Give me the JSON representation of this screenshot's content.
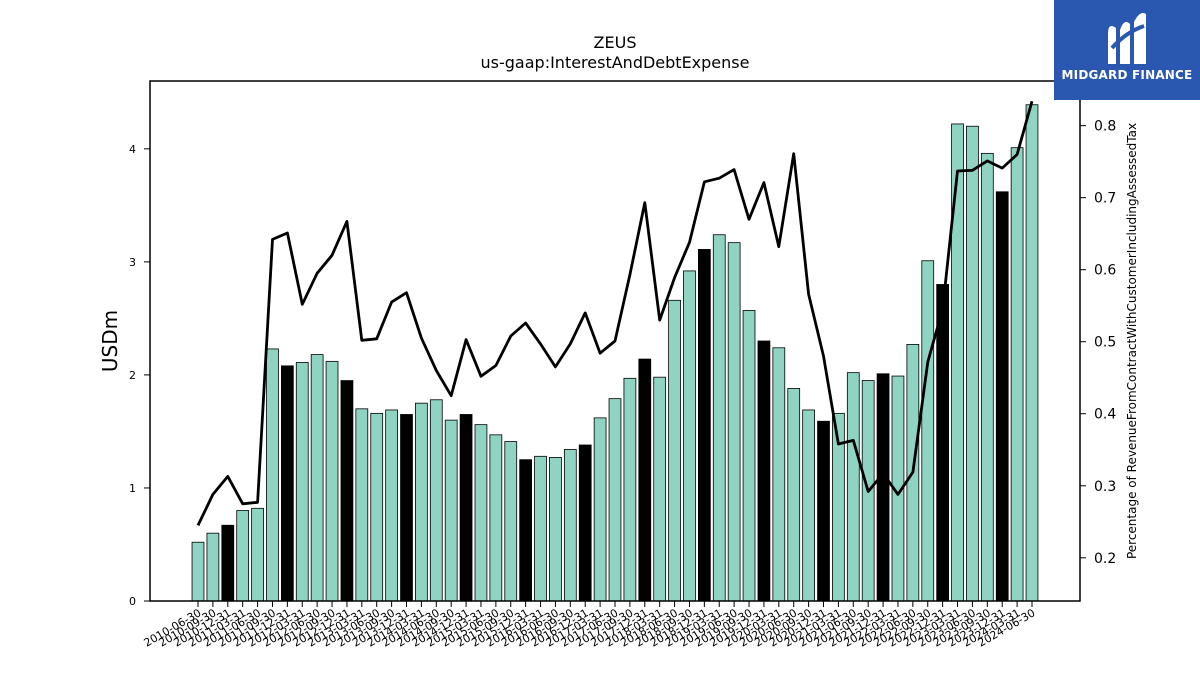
{
  "chart_data": {
    "type": "bar",
    "title": "ZEUS",
    "subtitle": "us-gaap:InterestAndDebtExpense",
    "ylabel": "USDm",
    "y2label": "Percentage of RevenueFromContractWithCustomerIncludingAssessedTax",
    "ylim": [
      0,
      4.6
    ],
    "y2lim": [
      0.14,
      0.862
    ],
    "yticks": [
      "0",
      "1",
      "2",
      "3",
      "4"
    ],
    "y2ticks": [
      "0.2",
      "0.3",
      "0.4",
      "0.5",
      "0.6",
      "0.7",
      "0.8"
    ],
    "colors": {
      "bar": "#8fd3c3",
      "highlight": "#000000",
      "line": "#000000"
    },
    "categories": [
      "2010-06-30",
      "2010-09-30",
      "2010-12-31",
      "2011-03-31",
      "2011-06-30",
      "2011-09-30",
      "2011-12-31",
      "2012-03-31",
      "2012-06-30",
      "2012-09-30",
      "2012-12-31",
      "2013-03-31",
      "2013-06-30",
      "2013-09-30",
      "2013-12-31",
      "2014-03-31",
      "2014-06-30",
      "2014-09-30",
      "2014-12-31",
      "2015-03-31",
      "2015-06-30",
      "2015-09-30",
      "2015-12-31",
      "2016-03-31",
      "2016-06-30",
      "2016-09-30",
      "2016-12-31",
      "2017-03-31",
      "2017-06-30",
      "2017-09-30",
      "2017-12-31",
      "2018-03-31",
      "2018-06-30",
      "2018-09-30",
      "2018-12-31",
      "2019-03-31",
      "2019-06-30",
      "2019-09-30",
      "2019-12-31",
      "2020-03-31",
      "2020-06-30",
      "2020-09-30",
      "2020-12-31",
      "2021-03-31",
      "2021-06-30",
      "2021-09-30",
      "2021-12-31",
      "2022-03-31",
      "2022-06-30",
      "2022-09-30",
      "2022-12-31",
      "2023-03-31",
      "2023-06-30",
      "2023-09-30",
      "2023-12-31",
      "2024-03-31",
      "2024-06-30"
    ],
    "tick_labels": [
      "2010-06-30",
      "2010-09-30",
      "2010-12-31",
      "2011-03-31",
      "2011-06-30",
      "2011-09-30",
      "2011-12-31",
      "2012-03-31",
      "2012-06-30",
      "2012-09-30",
      "2012-12-31",
      "2013-03-31",
      "2013-06-30",
      "2013-09-30",
      "2013-12-31",
      "2014-03-31",
      "2014-06-30",
      "2014-09-30",
      "2014-12-31",
      "2015-03-31",
      "2015-06-30",
      "2015-09-30",
      "2015-12-31",
      "2016-03-31",
      "2016-06-30",
      "2016-09-30",
      "2016-12-31",
      "2017-03-31",
      "2017-06-30",
      "2017-09-30",
      "2017-12-31",
      "2018-03-31",
      "2018-06-30",
      "2018-09-30",
      "2018-12-31",
      "2019-03-31",
      "2019-06-30",
      "2019-09-30",
      "2019-12-31",
      "2020-03-31",
      "2020-06-30",
      "2020-09-30",
      "2020-12-31",
      "2021-03-31",
      "2021-06-30",
      "2021-09-30",
      "2021-12-31",
      "2022-03-31",
      "2022-06-30",
      "2022-09-30",
      "2022-12-31",
      "2023-03-31",
      "2023-06-30",
      "2023-09-30",
      "2023-12-31",
      "2024-03-31",
      "2024-06-30"
    ],
    "series": [
      {
        "type": "bar",
        "values": [
          0.52,
          0.6,
          0.67,
          0.8,
          0.82,
          2.23,
          2.08,
          2.11,
          2.18,
          2.12,
          1.95,
          1.7,
          1.66,
          1.69,
          1.65,
          1.75,
          1.78,
          1.6,
          1.65,
          1.56,
          1.47,
          1.41,
          1.25,
          1.28,
          1.27,
          1.34,
          1.38,
          1.62,
          1.79,
          1.97,
          2.14,
          1.98,
          2.66,
          2.92,
          3.11,
          3.24,
          3.17,
          2.57,
          2.3,
          2.24,
          1.88,
          1.69,
          1.59,
          1.66,
          2.02,
          1.95,
          2.01,
          1.99,
          2.27,
          3.01,
          2.8,
          4.22,
          4.2,
          3.96,
          3.62,
          4.01,
          4.39
        ],
        "highlight": [
          false,
          false,
          true,
          false,
          false,
          false,
          true,
          false,
          false,
          false,
          true,
          false,
          false,
          false,
          true,
          false,
          false,
          false,
          true,
          false,
          false,
          false,
          true,
          false,
          false,
          false,
          true,
          false,
          false,
          false,
          true,
          false,
          false,
          false,
          true,
          false,
          false,
          false,
          true,
          false,
          false,
          false,
          true,
          false,
          false,
          false,
          true,
          false,
          false,
          false,
          true,
          false,
          false,
          false,
          true,
          false,
          false
        ]
      },
      {
        "type": "line",
        "axis": "right",
        "values": [
          0.245,
          0.288,
          0.313,
          0.275,
          0.277,
          0.642,
          0.651,
          0.552,
          0.595,
          0.62,
          0.667,
          0.502,
          0.504,
          0.555,
          0.568,
          0.505,
          0.46,
          0.425,
          0.503,
          0.452,
          0.467,
          0.508,
          0.526,
          0.497,
          0.465,
          0.497,
          0.54,
          0.484,
          0.501,
          0.593,
          0.693,
          0.53,
          0.589,
          0.638,
          0.722,
          0.727,
          0.739,
          0.67,
          0.721,
          0.632,
          0.761,
          0.566,
          0.48,
          0.358,
          0.363,
          0.292,
          0.317,
          0.288,
          0.319,
          0.472,
          0.545,
          0.737,
          0.738,
          0.751,
          0.741,
          0.76,
          0.834
        ]
      }
    ]
  },
  "logo": {
    "text": "MIDGARD FINANCE"
  }
}
